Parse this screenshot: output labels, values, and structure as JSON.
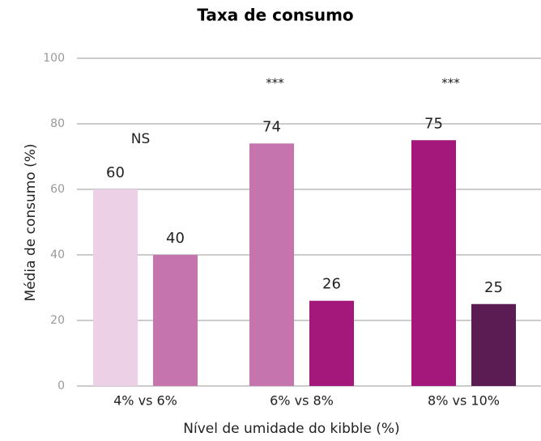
{
  "chart_data": {
    "type": "grouped-bar",
    "title": "Taxa de consumo",
    "categories": [
      "4% vs 6%",
      "6% vs 8%",
      "8% vs 10%"
    ],
    "values": [
      [
        60,
        40
      ],
      [
        74,
        26
      ],
      [
        75,
        25
      ]
    ],
    "colors": [
      [
        "#ecd0e6",
        "#c574ae"
      ],
      [
        "#c574ae",
        "#a4187c"
      ],
      [
        "#a4187c",
        "#5a1c52"
      ]
    ],
    "annotations": [
      "NS",
      "***",
      "***"
    ],
    "ylabel": "Média de consumo (%)",
    "xlabel": "Nível de umidade do kibble (%)",
    "ylim": [
      0,
      100
    ],
    "yticks": [
      0,
      20,
      40,
      60,
      80,
      100
    ],
    "grid": true
  }
}
